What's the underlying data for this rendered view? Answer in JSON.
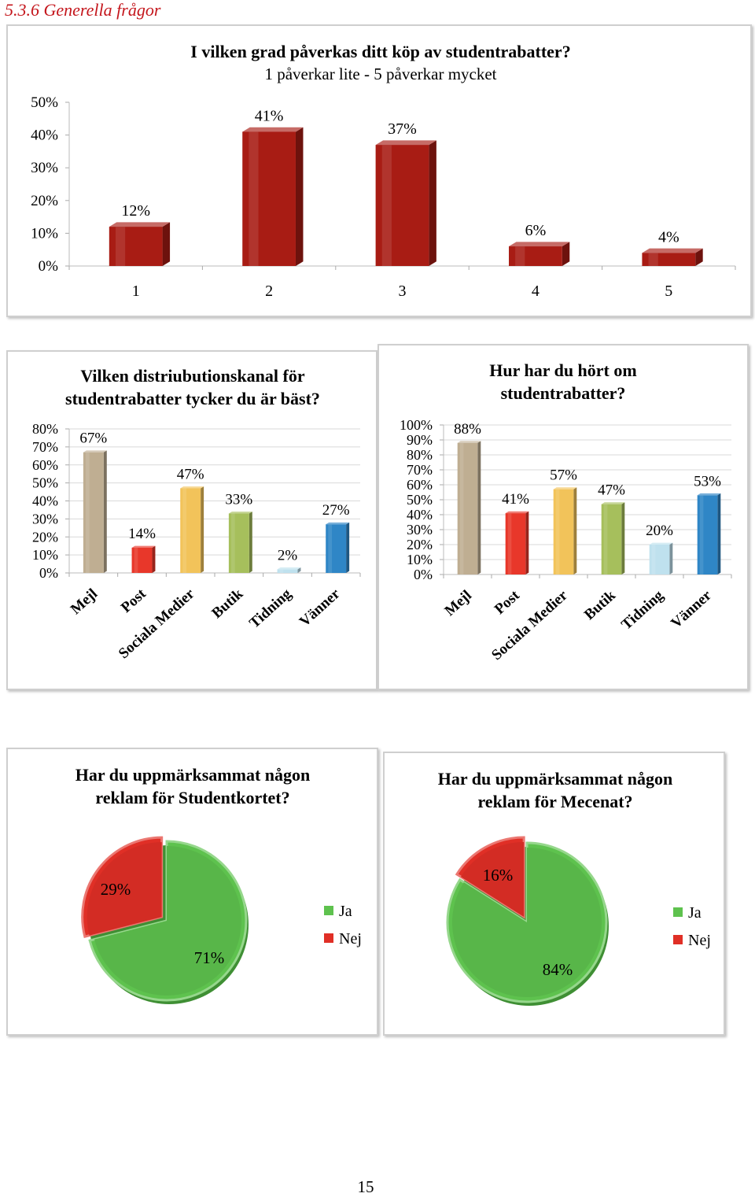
{
  "section_title": "5.3.6 Generella frågor",
  "page_number": "15",
  "chart_data": [
    {
      "id": "purchase_influence",
      "type": "bar",
      "title": "I vilken grad påverkas ditt köp av studentrabatter?",
      "subtitle": "1 påverkar lite - 5 påverkar mycket",
      "categories": [
        "1",
        "2",
        "3",
        "4",
        "5"
      ],
      "values": [
        12,
        41,
        37,
        6,
        4
      ],
      "data_labels": [
        "12%",
        "41%",
        "37%",
        "6%",
        "4%"
      ],
      "ylim": [
        0,
        50
      ],
      "yticks": [
        "0%",
        "10%",
        "20%",
        "30%",
        "40%",
        "50%"
      ],
      "colors": [
        "#a81c14",
        "#a81c14",
        "#a81c14",
        "#a81c14",
        "#a81c14"
      ],
      "grid": false,
      "legend": "none"
    },
    {
      "id": "best_channel",
      "type": "bar",
      "title": "Vilken distriubutionskanal för studentrabatter tycker du är bäst?",
      "categories": [
        "Mejl",
        "Post",
        "Sociala Medier",
        "Butik",
        "Tidning",
        "Vänner"
      ],
      "values": [
        67,
        14,
        47,
        33,
        2,
        27
      ],
      "data_labels": [
        "67%",
        "14%",
        "47%",
        "33%",
        "2%",
        "27%"
      ],
      "ylim": [
        0,
        80
      ],
      "yticks": [
        "0%",
        "10%",
        "20%",
        "30%",
        "40%",
        "50%",
        "60%",
        "70%",
        "80%"
      ],
      "colors": [
        "#bfae92",
        "#e8372a",
        "#f2c35a",
        "#a6bf5c",
        "#bfe1ee",
        "#2f86c6"
      ],
      "grid": true,
      "legend": "none"
    },
    {
      "id": "heard_about",
      "type": "bar",
      "title": "Hur har du hört om studentrabatter?",
      "categories": [
        "Mejl",
        "Post",
        "Sociala Medier",
        "Butik",
        "Tidning",
        "Vänner"
      ],
      "values": [
        88,
        41,
        57,
        47,
        20,
        53
      ],
      "data_labels": [
        "88%",
        "41%",
        "57%",
        "47%",
        "20%",
        "53%"
      ],
      "ylim": [
        0,
        100
      ],
      "yticks": [
        "0%",
        "10%",
        "20%",
        "30%",
        "40%",
        "50%",
        "60%",
        "70%",
        "80%",
        "90%",
        "100%"
      ],
      "colors": [
        "#bfae92",
        "#e8372a",
        "#f2c35a",
        "#a6bf5c",
        "#bfe1ee",
        "#2f86c6"
      ],
      "grid": true,
      "legend": "none"
    },
    {
      "id": "studentkortet_ads",
      "type": "pie",
      "title": "Har du uppmärksammat någon reklam för Studentkortet?",
      "labels": [
        "Ja",
        "Nej"
      ],
      "values": [
        71,
        29
      ],
      "data_labels": [
        "71%",
        "29%"
      ],
      "colors": [
        "#5ec24e",
        "#e02f26"
      ],
      "legend": "right"
    },
    {
      "id": "mecenat_ads",
      "type": "pie",
      "title": "Har du uppmärksammat någon reklam för Mecenat?",
      "labels": [
        "Ja",
        "Nej"
      ],
      "values": [
        84,
        16
      ],
      "data_labels": [
        "84%",
        "16%"
      ],
      "colors": [
        "#5ec24e",
        "#e02f26"
      ],
      "legend": "right"
    }
  ]
}
